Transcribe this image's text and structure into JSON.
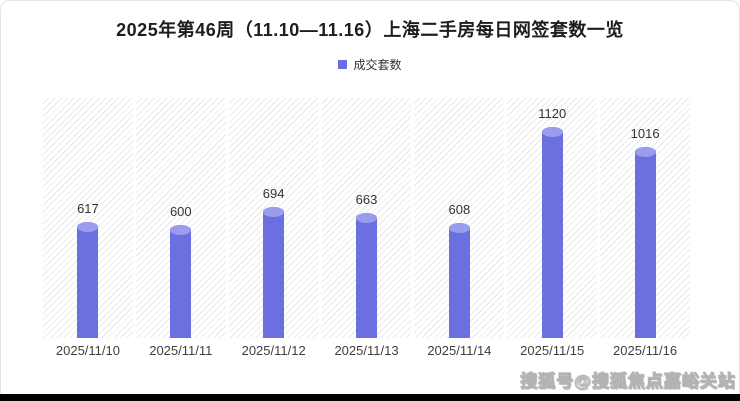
{
  "title": "2025年第46周（11.10—11.16）上海二手房每日网签套数一览",
  "legend": {
    "label": "成交套数",
    "color": "#6a6ee0"
  },
  "chart_data": {
    "type": "bar",
    "categories": [
      "2025/11/10",
      "2025/11/11",
      "2025/11/12",
      "2025/11/13",
      "2025/11/14",
      "2025/11/15",
      "2025/11/16"
    ],
    "series": [
      {
        "name": "成交套数",
        "values": [
          617,
          600,
          694,
          663,
          608,
          1120,
          1016
        ]
      }
    ],
    "title": "2025年第46周（11.10—11.16）上海二手房每日网签套数一览",
    "xlabel": "",
    "ylabel": "",
    "ylim": [
      0,
      1200
    ],
    "grid": false,
    "legend_position": "top",
    "bar_style": "cylinder",
    "bar_color": "#6b6fdf",
    "bar_cap_color": "#9a9ded",
    "panel_hatch_color": "#eaeaea",
    "value_labels_shown": true
  },
  "watermark": "搜狐号@搜狐焦点嘉峪关站"
}
